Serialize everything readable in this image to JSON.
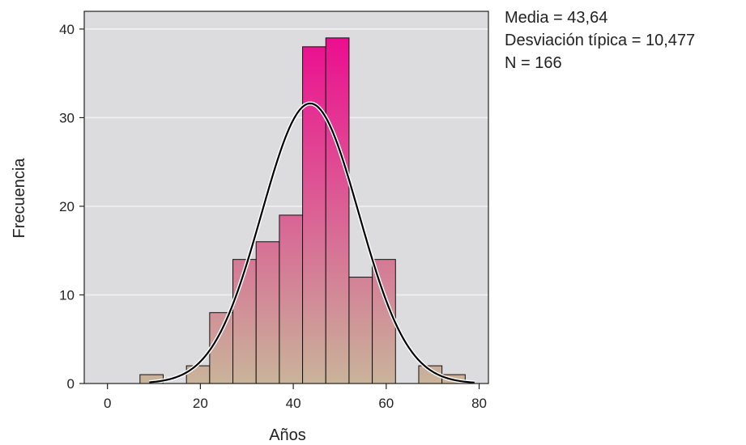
{
  "chart_data": {
    "type": "bar",
    "title": "",
    "xlabel": "Años",
    "ylabel": "Frecuencia",
    "xlim": [
      -5,
      82
    ],
    "ylim": [
      0,
      42
    ],
    "xticks": [
      0,
      20,
      40,
      60,
      80
    ],
    "yticks": [
      0,
      10,
      20,
      30,
      40
    ],
    "grid": true,
    "bin_width": 5,
    "bins": [
      {
        "start": 7,
        "end": 12,
        "value": 1
      },
      {
        "start": 17,
        "end": 22,
        "value": 2
      },
      {
        "start": 22,
        "end": 27,
        "value": 8
      },
      {
        "start": 27,
        "end": 32,
        "value": 14
      },
      {
        "start": 32,
        "end": 37,
        "value": 16
      },
      {
        "start": 37,
        "end": 42,
        "value": 19
      },
      {
        "start": 42,
        "end": 47,
        "value": 38
      },
      {
        "start": 47,
        "end": 52,
        "value": 39
      },
      {
        "start": 52,
        "end": 57,
        "value": 12
      },
      {
        "start": 57,
        "end": 62,
        "value": 14
      },
      {
        "start": 67,
        "end": 72,
        "value": 2
      },
      {
        "start": 72,
        "end": 77,
        "value": 1
      }
    ],
    "normal_curve": {
      "mean": 43.64,
      "sd": 10.477,
      "n": 166,
      "x_range": [
        9,
        79
      ]
    },
    "colors": {
      "plot_background": "#dcdcdf",
      "gridline": "#f2f2f2",
      "bar_top": "#ec0d8f",
      "bar_bottom": "#c9b49a",
      "bar_outline": "#111111",
      "curve": "#000000",
      "curve_halo": "#ffffff"
    }
  },
  "legend": {
    "line1": "Media = 43,64",
    "line2": "Desviación típica = 10,477",
    "line3": "N = 166"
  }
}
